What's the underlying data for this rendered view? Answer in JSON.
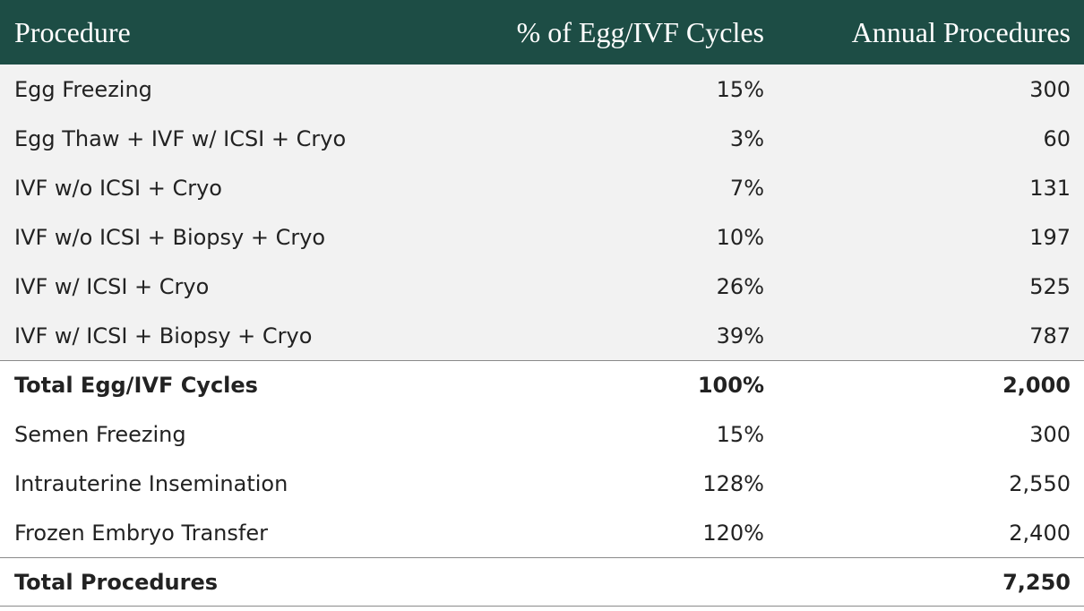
{
  "header": {
    "columns": [
      "Procedure",
      "% of Egg/IVF Cycles",
      "Annual Procedures"
    ]
  },
  "sections": [
    {
      "rows": [
        {
          "label": "Egg Freezing",
          "percent": "15%",
          "annual": "300"
        },
        {
          "label": "Egg Thaw + IVF w/ ICSI + Cryo",
          "percent": "3%",
          "annual": "60"
        },
        {
          "label": "IVF w/o ICSI + Cryo",
          "percent": "7%",
          "annual": "131"
        },
        {
          "label": "IVF w/o ICSI + Biopsy + Cryo",
          "percent": "10%",
          "annual": "197"
        },
        {
          "label": "IVF w/ ICSI + Cryo",
          "percent": "26%",
          "annual": "525"
        },
        {
          "label": "IVF w/ ICSI + Biopsy + Cryo",
          "percent": "39%",
          "annual": "787"
        }
      ],
      "total": {
        "label": "Total Egg/IVF Cycles",
        "percent": "100%",
        "annual": "2,000"
      }
    },
    {
      "rows": [
        {
          "label": "Semen Freezing",
          "percent": "15%",
          "annual": "300"
        },
        {
          "label": "Intrauterine Insemination",
          "percent": "128%",
          "annual": "2,550"
        },
        {
          "label": "Frozen Embryo Transfer",
          "percent": "120%",
          "annual": "2,400"
        }
      ],
      "total": {
        "label": "Total Procedures",
        "annual": "7,250"
      }
    }
  ]
}
